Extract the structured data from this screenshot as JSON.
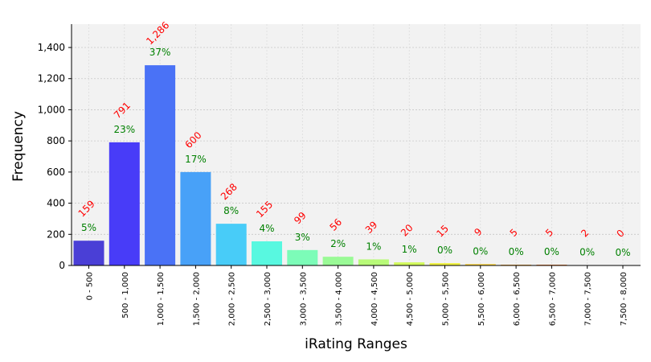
{
  "chart_data": {
    "type": "bar",
    "xlabel": "iRating Ranges",
    "ylabel": "Frequency",
    "ylim": [
      0,
      1550
    ],
    "yticks": [
      0,
      200,
      400,
      600,
      800,
      1000,
      1200,
      1400
    ],
    "ytick_labels": [
      "0",
      "200",
      "400",
      "600",
      "800",
      "1,000",
      "1,200",
      "1,400"
    ],
    "grid": true,
    "categories": [
      "0 - 500",
      "500 - 1,000",
      "1,000 - 1,500",
      "1,500 - 2,000",
      "2,000 - 2,500",
      "2,500 - 3,000",
      "3,000 - 3,500",
      "3,500 - 4,000",
      "4,000 - 4,500",
      "4,500 - 5,000",
      "5,000 - 5,500",
      "5,500 - 6,000",
      "6,000 - 6,500",
      "6,500 - 7,000",
      "7,000 - 7,500",
      "7,500 - 8,000"
    ],
    "values": [
      159,
      791,
      1286,
      600,
      268,
      155,
      99,
      56,
      39,
      20,
      15,
      9,
      5,
      5,
      2,
      0
    ],
    "count_labels": [
      "159",
      "791",
      "1,286",
      "600",
      "268",
      "155",
      "99",
      "56",
      "39",
      "20",
      "15",
      "9",
      "5",
      "5",
      "2",
      "0"
    ],
    "percent_labels": [
      "5%",
      "23%",
      "37%",
      "17%",
      "8%",
      "4%",
      "3%",
      "2%",
      "1%",
      "1%",
      "0%",
      "0%",
      "0%",
      "0%",
      "0%",
      "0%"
    ],
    "colors": [
      "#4a3fd6",
      "#483cf8",
      "#4a72f6",
      "#48a1f8",
      "#48ccf8",
      "#58f8e0",
      "#7cfcb8",
      "#9afa96",
      "#b8fa78",
      "#d2fa5c",
      "#f0f240",
      "#fad23a",
      "#faa630",
      "#fa7e2c",
      "#fa5a28",
      "#e83c28"
    ],
    "count_color": "#ff0000",
    "percent_color": "#008000",
    "plot_background": "#f2f2f2"
  }
}
